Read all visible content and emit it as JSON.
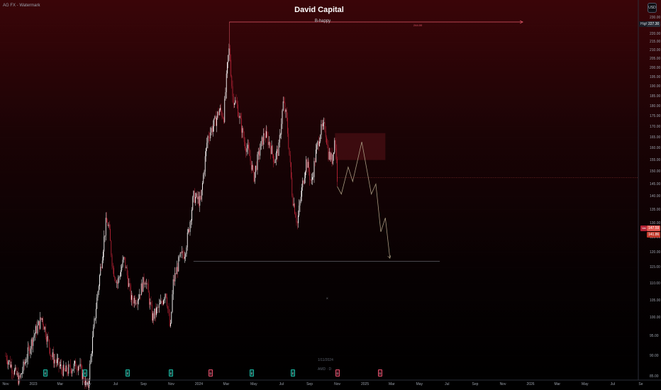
{
  "watermark": "AG FX - Watermark",
  "title": "David Capital",
  "subtitle": "B-happy",
  "currency": "USD",
  "high_label": "High",
  "high_value": "227.30",
  "range_label": "244.00",
  "current_badge": "Val",
  "current_price": "147.59",
  "price_tag_2": "141.86",
  "x_marker": "X",
  "date_note": "1/11/2024",
  "source_note": "AMD · D",
  "price_axis": [
    "230.00",
    "225.00",
    "220.00",
    "215.00",
    "210.00",
    "205.00",
    "200.00",
    "195.00",
    "190.00",
    "185.00",
    "180.00",
    "175.00",
    "170.00",
    "165.00",
    "160.00",
    "155.00",
    "150.00",
    "145.00",
    "140.00",
    "135.00",
    "130.00",
    "125.00",
    "120.00",
    "115.00",
    "110.00",
    "105.00",
    "100.00",
    "95.00",
    "90.00",
    "85.00"
  ],
  "time_axis": [
    "Nov",
    "2023",
    "Mar",
    "May",
    "Jul",
    "Sep",
    "Nov",
    "2024",
    "Mar",
    "May",
    "Jul",
    "Sep",
    "Nov",
    "2025",
    "Mar",
    "May",
    "Jul",
    "Sep",
    "Nov",
    "2026",
    "Mar",
    "May",
    "Jul",
    "Se"
  ],
  "events": [
    {
      "type": "earn",
      "label": "E"
    },
    {
      "type": "earn",
      "label": "E"
    },
    {
      "type": "earn",
      "label": "E"
    },
    {
      "type": "earn",
      "label": "E"
    },
    {
      "type": "div",
      "label": "D"
    },
    {
      "type": "earn",
      "label": "E"
    },
    {
      "type": "earn",
      "label": "E"
    },
    {
      "type": "div",
      "label": "D"
    },
    {
      "type": "div",
      "label": "D"
    }
  ],
  "colors": {
    "up": "#ffffff",
    "down": "#b22234",
    "projection": "#a89a80",
    "zone": "#5a1218",
    "accent": "#e6596b"
  },
  "chart_data": {
    "type": "candlestick",
    "symbol": "AMD",
    "interval": "D",
    "ylim": [
      85,
      230
    ],
    "y_log": true,
    "price_path": [
      [
        "2022-11-01",
        90
      ],
      [
        "2022-12-01",
        84
      ],
      [
        "2023-01-01",
        95
      ],
      [
        "2023-01-20",
        100
      ],
      [
        "2023-02-10",
        90
      ],
      [
        "2023-03-10",
        86
      ],
      [
        "2023-04-10",
        88
      ],
      [
        "2023-05-01",
        82
      ],
      [
        "2023-05-15",
        98
      ],
      [
        "2023-06-01",
        118
      ],
      [
        "2023-06-10",
        130
      ],
      [
        "2023-06-15",
        130
      ],
      [
        "2023-06-25",
        115
      ],
      [
        "2023-07-05",
        110
      ],
      [
        "2023-07-20",
        118
      ],
      [
        "2023-08-05",
        105
      ],
      [
        "2023-08-20",
        106
      ],
      [
        "2023-09-05",
        112
      ],
      [
        "2023-09-20",
        100
      ],
      [
        "2023-10-10",
        104
      ],
      [
        "2023-10-20",
        108
      ],
      [
        "2023-10-30",
        96
      ],
      [
        "2023-11-05",
        110
      ],
      [
        "2023-11-20",
        118
      ],
      [
        "2023-12-01",
        120
      ],
      [
        "2023-12-10",
        128
      ],
      [
        "2023-12-20",
        140
      ],
      [
        "2024-01-05",
        138
      ],
      [
        "2024-01-20",
        165
      ],
      [
        "2024-02-05",
        172
      ],
      [
        "2024-02-15",
        178
      ],
      [
        "2024-02-25",
        175
      ],
      [
        "2024-03-05",
        205
      ],
      [
        "2024-03-08",
        211
      ],
      [
        "2024-03-15",
        185
      ],
      [
        "2024-03-25",
        180
      ],
      [
        "2024-04-10",
        163
      ],
      [
        "2024-04-20",
        158
      ],
      [
        "2024-05-01",
        148
      ],
      [
        "2024-05-15",
        160
      ],
      [
        "2024-05-25",
        167
      ],
      [
        "2024-06-05",
        162
      ],
      [
        "2024-06-15",
        155
      ],
      [
        "2024-06-25",
        160
      ],
      [
        "2024-07-05",
        182
      ],
      [
        "2024-07-12",
        174
      ],
      [
        "2024-07-25",
        140
      ],
      [
        "2024-08-05",
        130
      ],
      [
        "2024-08-15",
        143
      ],
      [
        "2024-08-25",
        155
      ],
      [
        "2024-09-05",
        145
      ],
      [
        "2024-09-15",
        158
      ],
      [
        "2024-09-25",
        168
      ],
      [
        "2024-10-05",
        170
      ],
      [
        "2024-10-12",
        158
      ],
      [
        "2024-10-20",
        155
      ],
      [
        "2024-10-27",
        165
      ],
      [
        "2024-11-01",
        147.59
      ]
    ],
    "projection": [
      [
        "2024-11-01",
        144
      ],
      [
        "2024-11-10",
        141
      ],
      [
        "2024-11-25",
        152
      ],
      [
        "2024-12-05",
        146
      ],
      [
        "2024-12-25",
        163
      ],
      [
        "2025-01-15",
        141
      ],
      [
        "2025-01-25",
        145
      ],
      [
        "2025-02-05",
        127
      ],
      [
        "2025-02-15",
        132
      ],
      [
        "2025-02-25",
        118
      ]
    ],
    "supply_zone": {
      "start": "2024-10-27",
      "end": "2025-02-15",
      "low": 155,
      "high": 167
    },
    "support_line": {
      "start": "2023-12-20",
      "end": "2025-06-15",
      "value": 117
    },
    "range_line": {
      "start": "2024-03-08",
      "end": "2025-12-15",
      "value": 227.3
    },
    "last_price": 147.59,
    "high": 227.3
  }
}
